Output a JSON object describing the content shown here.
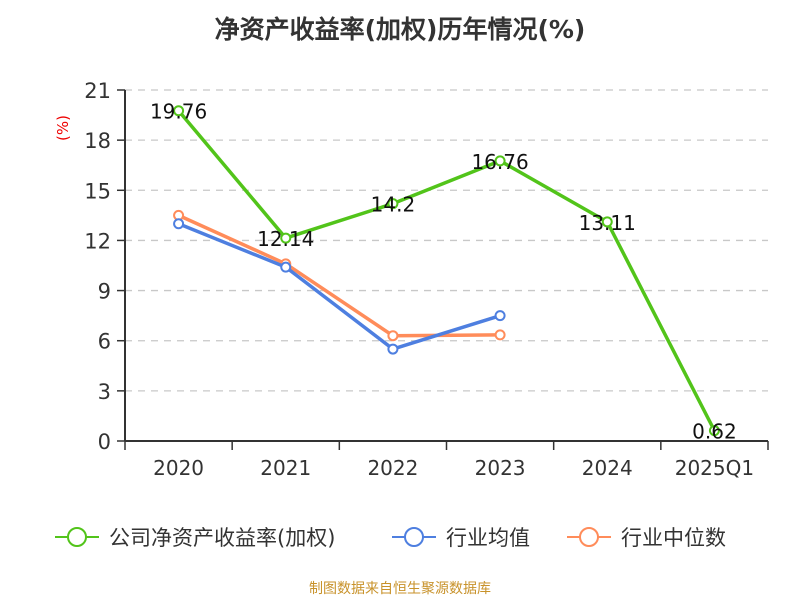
{
  "chart_data": {
    "type": "line",
    "title": "净资产收益率(加权)历年情况(%)",
    "ylabel": "(%)",
    "xlabel": "",
    "categories": [
      "2020",
      "2021",
      "2022",
      "2023",
      "2024",
      "2025Q1"
    ],
    "ylim": [
      0,
      21
    ],
    "yticks": [
      0,
      3,
      6,
      9,
      12,
      15,
      18,
      21
    ],
    "grid": true,
    "legend_position": "bottom",
    "series": [
      {
        "name": "公司净资产收益率(加权)",
        "color": "#52c41a",
        "values": [
          19.76,
          12.14,
          14.2,
          16.76,
          13.11,
          0.62
        ],
        "labels": [
          "19.76",
          "12.14",
          "14.2",
          "16.76",
          "13.11",
          "0.62"
        ]
      },
      {
        "name": "行业均值",
        "color": "#4e7fe0",
        "values": [
          13.0,
          10.4,
          5.5,
          7.5,
          null,
          null
        ]
      },
      {
        "name": "行业中位数",
        "color": "#ff8c5a",
        "values": [
          13.5,
          10.6,
          6.3,
          6.35,
          null,
          null
        ]
      }
    ]
  },
  "source": "制图数据来自恒生聚源数据库"
}
